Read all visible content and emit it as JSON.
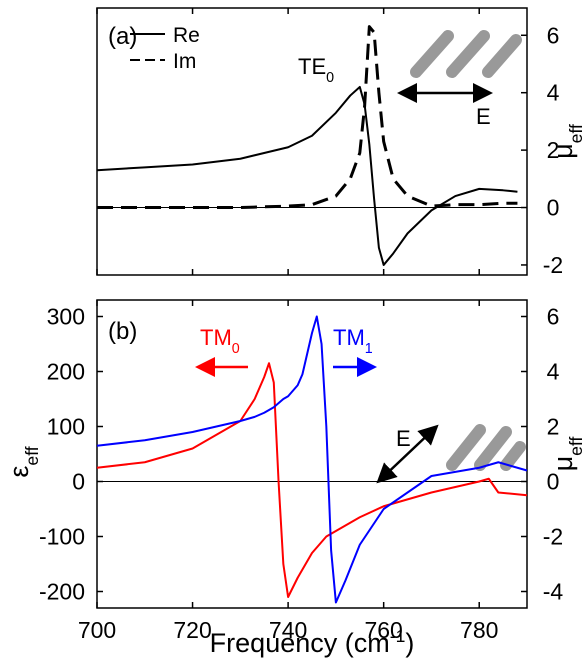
{
  "chart_data": [
    {
      "type": "line",
      "label": "(a)",
      "annotations": [
        {
          "text": "TE",
          "sub": "0"
        },
        {
          "text": "E"
        }
      ],
      "y2label": {
        "text": "μ",
        "sub": "eff"
      },
      "x": [
        700,
        710,
        720,
        730,
        740,
        745,
        750,
        753,
        755,
        756,
        757,
        758,
        759,
        760,
        762,
        765,
        770,
        775,
        780,
        785,
        788
      ],
      "xlim": [
        700,
        790
      ],
      "xticks": [
        700,
        720,
        740,
        760,
        780
      ],
      "xtick_labels": false,
      "y2lim": [
        -2.35,
        6.95
      ],
      "y2ticks": [
        -2,
        0,
        2,
        4,
        6
      ],
      "zero_line": true,
      "series": [
        {
          "name": "Re",
          "color": "#000000",
          "dash": false,
          "axis": "y2",
          "values": [
            1.3,
            1.4,
            1.5,
            1.7,
            2.1,
            2.5,
            3.3,
            3.9,
            4.2,
            3.6,
            2.2,
            0.3,
            -1.4,
            -2.0,
            -1.6,
            -0.9,
            -0.1,
            0.4,
            0.65,
            0.6,
            0.55
          ]
        },
        {
          "name": "Im",
          "color": "#000000",
          "dash": true,
          "axis": "y2",
          "values": [
            0,
            0,
            0,
            0,
            0.05,
            0.1,
            0.4,
            1.0,
            1.9,
            3.5,
            6.3,
            6.1,
            4.0,
            2.3,
            1.0,
            0.4,
            0.05,
            0.1,
            0.1,
            0.15,
            0.15
          ]
        }
      ]
    },
    {
      "type": "line",
      "label": "(b)",
      "annotations": [
        {
          "text": "TM",
          "sub": "0",
          "color": "#ff0000"
        },
        {
          "text": "TM",
          "sub": "1",
          "color": "#0000ff"
        },
        {
          "text": "E"
        }
      ],
      "ylabel": {
        "text": "ε",
        "sub": "eff"
      },
      "y2label": {
        "text": "μ",
        "sub": "eff"
      },
      "xlabel": {
        "text": "Frequency (cm",
        "sup": "-1",
        "tail": ")"
      },
      "x": [
        700,
        710,
        720,
        730,
        733,
        735,
        736,
        737,
        738,
        739,
        740,
        742,
        743,
        745,
        746,
        747,
        748,
        749,
        750,
        752,
        755,
        760,
        770,
        780,
        782,
        784,
        790
      ],
      "xlim": [
        700,
        790
      ],
      "xticks": [
        700,
        720,
        740,
        760,
        780
      ],
      "xtick_labels": true,
      "ylim": [
        -230,
        330
      ],
      "yticks": [
        -200,
        -100,
        0,
        100,
        200,
        300
      ],
      "y2lim": [
        -4.6,
        6.6
      ],
      "y2ticks": [
        -4,
        -2,
        0,
        2,
        4,
        6
      ],
      "zero_line": true,
      "series": [
        {
          "color": "#ff0000",
          "dash": false,
          "axis": "y",
          "values": [
            25,
            35,
            60,
            110,
            150,
            190,
            215,
            180,
            0,
            -150,
            -210,
            -175,
            -160,
            -130,
            -120,
            -110,
            -100,
            -95,
            -90,
            -80,
            -65,
            -45,
            -20,
            0,
            5,
            -20,
            -25
          ]
        },
        {
          "color": "#0000ff",
          "dash": false,
          "axis": "y2",
          "values": [
            1.3,
            1.5,
            1.8,
            2.2,
            2.35,
            2.5,
            2.6,
            2.7,
            2.85,
            3.0,
            3.1,
            3.5,
            3.9,
            5.4,
            6.0,
            5.0,
            2.0,
            -2.5,
            -4.4,
            -3.6,
            -2.3,
            -1.0,
            0.2,
            0.5,
            0.6,
            0.7,
            0.4
          ]
        }
      ]
    }
  ]
}
